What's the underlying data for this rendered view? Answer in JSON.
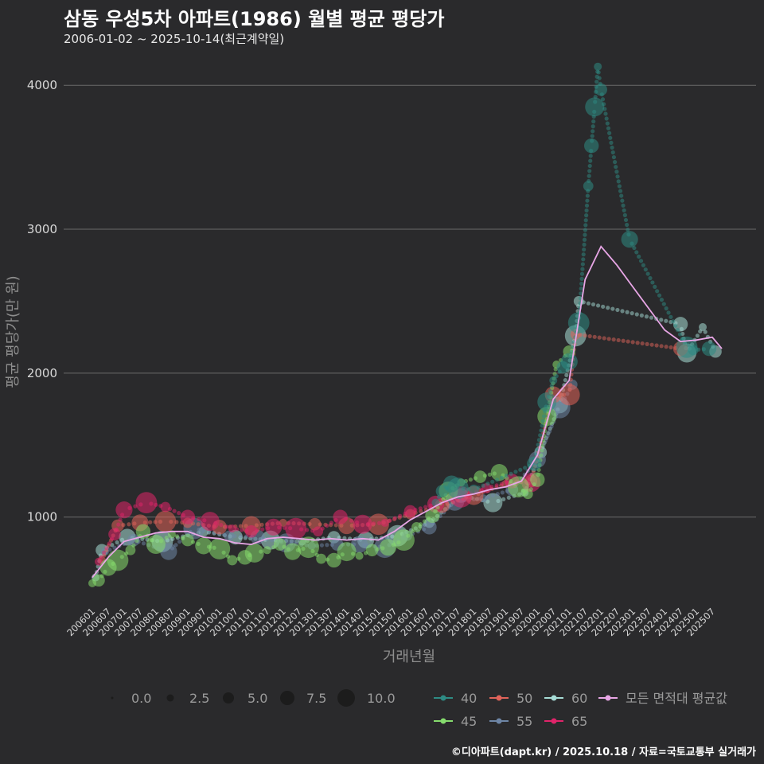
{
  "title": "삼동 우성5차 아파트(1986) 월별 평균 평당가",
  "subtitle": "2006-01-02 ~ 2025-10-14(최근계약일)",
  "caption": "©디아파트(dapt.kr) / 2025.10.18 / 자료=국토교통부 실거래가",
  "chart_data": {
    "type": "scatter",
    "title": "삼동 우성5차 아파트(1986) 월별 평균 평당가",
    "xlabel": "거래년월",
    "ylabel": "평균 평당가(만 원)",
    "ylim": [
      390,
      4250
    ],
    "yticks": [
      1000,
      2000,
      3000,
      4000
    ],
    "xticks": [
      "200601",
      "200607",
      "200701",
      "200707",
      "200801",
      "200807",
      "200901",
      "200907",
      "201001",
      "201007",
      "201101",
      "201107",
      "201201",
      "201207",
      "201301",
      "201307",
      "201401",
      "201407",
      "201501",
      "201507",
      "201601",
      "201607",
      "201701",
      "201707",
      "201801",
      "201807",
      "201901",
      "201907",
      "202001",
      "202007",
      "202101",
      "202107",
      "202201",
      "202207",
      "202301",
      "202307",
      "202401",
      "202407",
      "202501",
      "202507"
    ],
    "size_legend": {
      "title": "",
      "values": [
        0.0,
        2.5,
        5.0,
        7.5,
        10.0
      ],
      "labels": [
        "0.0",
        "2.5",
        "5.0",
        "7.5",
        "10.0"
      ]
    },
    "colors": {
      "40": "#2e8b84",
      "45": "#86dc6e",
      "50": "#e0635a",
      "55": "#6e86a6",
      "60": "#a6dcd6",
      "65": "#e0246a",
      "avg": "#e8a6e6"
    },
    "series": [
      {
        "name": "40",
        "points": [
          [
            2016.8,
            1100
          ],
          [
            2017.0,
            1180
          ],
          [
            2017.3,
            1230
          ],
          [
            2017.5,
            1200
          ],
          [
            2018.0,
            1190
          ],
          [
            2019.9,
            1370
          ],
          [
            2020.3,
            1800
          ],
          [
            2020.5,
            1950
          ],
          [
            2020.8,
            2040
          ],
          [
            2021.0,
            2080
          ],
          [
            2021.3,
            2350
          ],
          [
            2021.6,
            3300
          ],
          [
            2021.7,
            3580
          ],
          [
            2021.8,
            3850
          ],
          [
            2021.9,
            4130
          ],
          [
            2022.0,
            3970
          ],
          [
            2022.9,
            2930
          ],
          [
            2024.7,
            2180
          ],
          [
            2024.9,
            2160
          ],
          [
            2025.4,
            2170
          ]
        ]
      },
      {
        "name": "45",
        "points": [
          [
            2006.0,
            540
          ],
          [
            2006.2,
            560
          ],
          [
            2006.5,
            650
          ],
          [
            2006.8,
            700
          ],
          [
            2007.2,
            770
          ],
          [
            2007.6,
            900
          ],
          [
            2008.0,
            810
          ],
          [
            2008.5,
            880
          ],
          [
            2009.0,
            840
          ],
          [
            2009.5,
            800
          ],
          [
            2010.0,
            780
          ],
          [
            2010.4,
            700
          ],
          [
            2010.8,
            720
          ],
          [
            2011.1,
            750
          ],
          [
            2011.5,
            770
          ],
          [
            2011.9,
            810
          ],
          [
            2012.3,
            760
          ],
          [
            2012.8,
            790
          ],
          [
            2013.2,
            710
          ],
          [
            2013.6,
            700
          ],
          [
            2014.0,
            760
          ],
          [
            2014.4,
            730
          ],
          [
            2014.8,
            770
          ],
          [
            2015.3,
            790
          ],
          [
            2015.8,
            840
          ],
          [
            2016.2,
            930
          ],
          [
            2016.7,
            1010
          ],
          [
            2017.2,
            1180
          ],
          [
            2017.6,
            1240
          ],
          [
            2018.2,
            1280
          ],
          [
            2018.8,
            1310
          ],
          [
            2019.4,
            1210
          ],
          [
            2019.7,
            1160
          ],
          [
            2020.0,
            1260
          ],
          [
            2020.3,
            1700
          ],
          [
            2020.6,
            2060
          ],
          [
            2021.0,
            2150
          ]
        ]
      },
      {
        "name": "50",
        "points": [
          [
            2006.3,
            700
          ],
          [
            2006.8,
            940
          ],
          [
            2007.5,
            960
          ],
          [
            2008.3,
            970
          ],
          [
            2009.0,
            960
          ],
          [
            2010.0,
            930
          ],
          [
            2011.0,
            940
          ],
          [
            2012.0,
            960
          ],
          [
            2013.0,
            950
          ],
          [
            2014.0,
            940
          ],
          [
            2015.0,
            950
          ],
          [
            2016.0,
            1020
          ],
          [
            2017.0,
            1080
          ],
          [
            2018.0,
            1150
          ],
          [
            2019.0,
            1230
          ],
          [
            2019.8,
            1250
          ],
          [
            2020.5,
            1850
          ],
          [
            2021.0,
            1850
          ],
          [
            2021.2,
            2270
          ],
          [
            2024.5,
            2170
          ]
        ]
      },
      {
        "name": "55",
        "points": [
          [
            2006.4,
            760
          ],
          [
            2007.3,
            840
          ],
          [
            2008.4,
            760
          ],
          [
            2009.2,
            920
          ],
          [
            2010.3,
            870
          ],
          [
            2011.2,
            860
          ],
          [
            2012.1,
            820
          ],
          [
            2012.9,
            800
          ],
          [
            2013.7,
            810
          ],
          [
            2014.4,
            810
          ],
          [
            2015.2,
            790
          ],
          [
            2015.9,
            870
          ],
          [
            2016.6,
            930
          ],
          [
            2017.4,
            1110
          ],
          [
            2018.3,
            1130
          ],
          [
            2019.2,
            1190
          ],
          [
            2020.0,
            1400
          ],
          [
            2020.7,
            1760
          ],
          [
            2021.1,
            1920
          ]
        ]
      },
      {
        "name": "60",
        "points": [
          [
            2006.1,
            580
          ],
          [
            2006.3,
            770
          ],
          [
            2007.1,
            860
          ],
          [
            2008.2,
            830
          ],
          [
            2009.5,
            900
          ],
          [
            2010.5,
            860
          ],
          [
            2011.6,
            840
          ],
          [
            2012.6,
            830
          ],
          [
            2013.6,
            860
          ],
          [
            2014.6,
            840
          ],
          [
            2015.6,
            870
          ],
          [
            2016.6,
            960
          ],
          [
            2017.6,
            1150
          ],
          [
            2018.6,
            1100
          ],
          [
            2019.6,
            1170
          ],
          [
            2020.1,
            1450
          ],
          [
            2020.7,
            1780
          ],
          [
            2021.2,
            2260
          ],
          [
            2021.3,
            2500
          ],
          [
            2024.5,
            2340
          ],
          [
            2024.7,
            2140
          ],
          [
            2025.2,
            2320
          ],
          [
            2025.6,
            2150
          ]
        ]
      },
      {
        "name": "65",
        "points": [
          [
            2006.2,
            690
          ],
          [
            2006.7,
            880
          ],
          [
            2007.0,
            1050
          ],
          [
            2007.7,
            1100
          ],
          [
            2008.3,
            1070
          ],
          [
            2009.0,
            1000
          ],
          [
            2009.7,
            970
          ],
          [
            2010.4,
            920
          ],
          [
            2011.0,
            900
          ],
          [
            2011.7,
            930
          ],
          [
            2012.4,
            920
          ],
          [
            2013.1,
            900
          ],
          [
            2013.8,
            1000
          ],
          [
            2014.5,
            950
          ],
          [
            2015.2,
            960
          ],
          [
            2016.0,
            1040
          ],
          [
            2016.8,
            1090
          ],
          [
            2017.6,
            1140
          ],
          [
            2018.4,
            1200
          ],
          [
            2019.2,
            1250
          ],
          [
            2019.8,
            1240
          ]
        ]
      },
      {
        "name": "모든 면적대 평균값",
        "points": [
          [
            2006.0,
            580
          ],
          [
            2006.5,
            720
          ],
          [
            2007.0,
            830
          ],
          [
            2007.5,
            860
          ],
          [
            2008.0,
            890
          ],
          [
            2008.5,
            900
          ],
          [
            2009.0,
            900
          ],
          [
            2009.5,
            860
          ],
          [
            2010.0,
            850
          ],
          [
            2010.5,
            820
          ],
          [
            2011.0,
            810
          ],
          [
            2011.5,
            850
          ],
          [
            2012.0,
            860
          ],
          [
            2012.5,
            850
          ],
          [
            2013.0,
            840
          ],
          [
            2013.5,
            850
          ],
          [
            2014.0,
            840
          ],
          [
            2014.5,
            850
          ],
          [
            2015.0,
            840
          ],
          [
            2015.5,
            900
          ],
          [
            2016.0,
            980
          ],
          [
            2016.5,
            1040
          ],
          [
            2017.0,
            1100
          ],
          [
            2017.5,
            1140
          ],
          [
            2018.0,
            1160
          ],
          [
            2018.5,
            1190
          ],
          [
            2019.0,
            1210
          ],
          [
            2019.5,
            1250
          ],
          [
            2020.0,
            1430
          ],
          [
            2020.5,
            1820
          ],
          [
            2021.0,
            1950
          ],
          [
            2021.5,
            2650
          ],
          [
            2022.0,
            2880
          ],
          [
            2022.5,
            2750
          ],
          [
            2023.0,
            2600
          ],
          [
            2023.5,
            2450
          ],
          [
            2024.0,
            2300
          ],
          [
            2024.5,
            2220
          ],
          [
            2025.0,
            2230
          ],
          [
            2025.5,
            2250
          ],
          [
            2025.8,
            2170
          ]
        ]
      }
    ]
  },
  "legend": {
    "size_entries": [
      "0.0",
      "2.5",
      "5.0",
      "7.5",
      "10.0"
    ],
    "series_row1": [
      "40",
      "50",
      "60",
      "모든 면적대 평균값"
    ],
    "series_row2": [
      "45",
      "55",
      "65"
    ]
  }
}
